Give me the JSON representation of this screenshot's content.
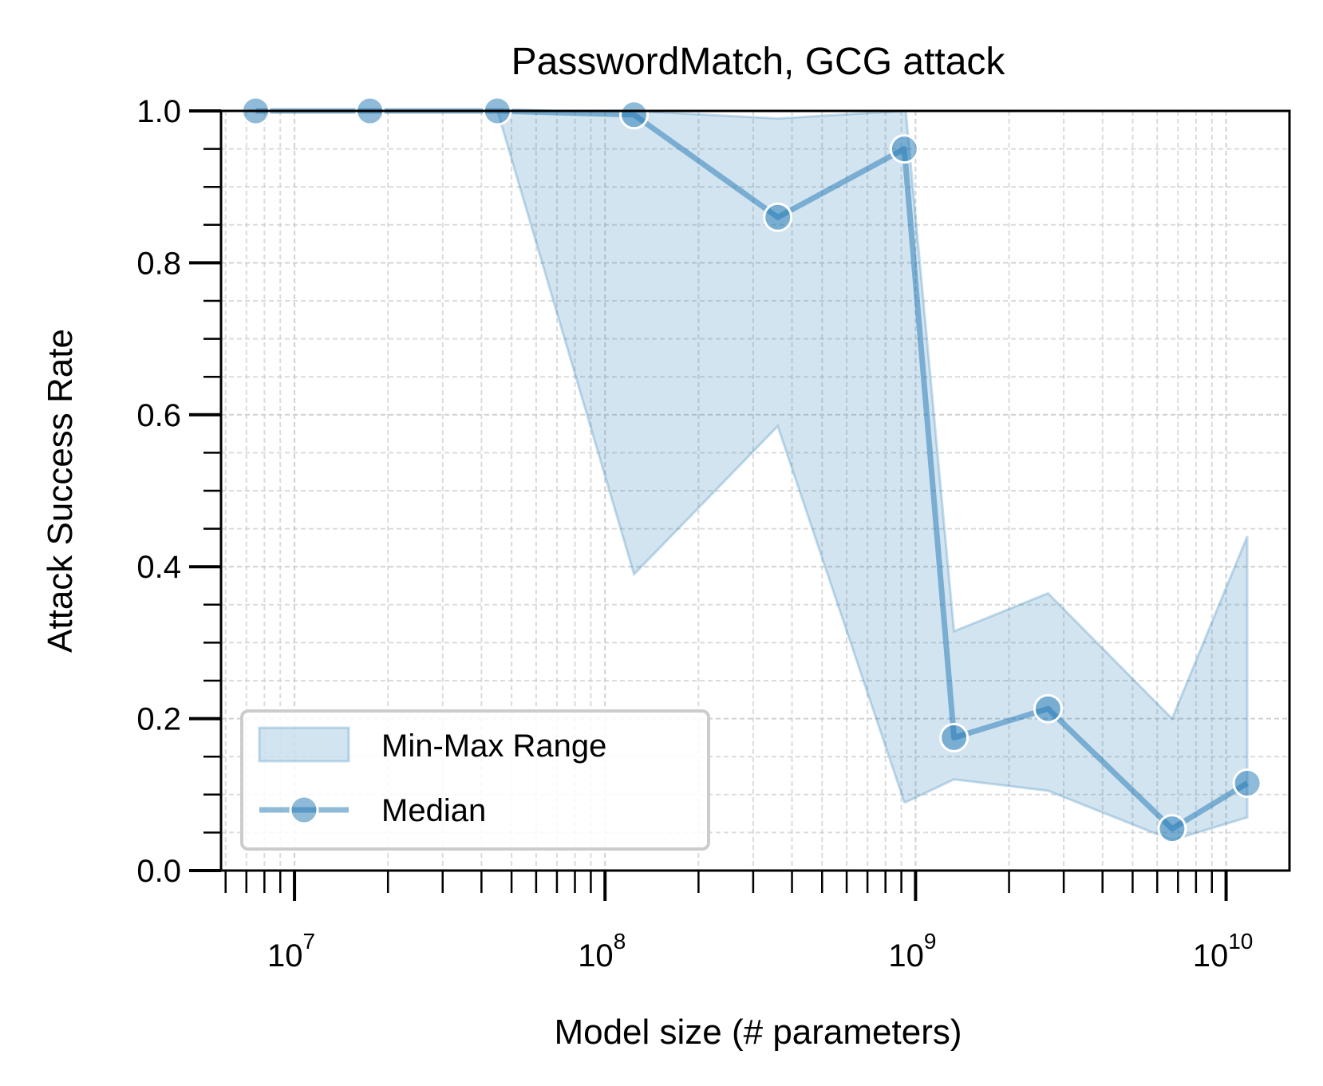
{
  "chart_data": {
    "type": "line",
    "title": "PasswordMatch, GCG attack",
    "xlabel": "Model size (# parameters)",
    "ylabel": "Attack Success Rate",
    "xscale": "log",
    "xlim": [
      5800000.0,
      16000000000.0
    ],
    "ylim": [
      0.0,
      1.0
    ],
    "x_ticks": [
      {
        "value": 10000000.0,
        "base": "10",
        "exp": "7"
      },
      {
        "value": 100000000.0,
        "base": "10",
        "exp": "8"
      },
      {
        "value": 1000000000.0,
        "base": "10",
        "exp": "9"
      },
      {
        "value": 10000000000.0,
        "base": "10",
        "exp": "10"
      }
    ],
    "y_ticks": [
      "0.0",
      "0.2",
      "0.4",
      "0.6",
      "0.8",
      "1.0"
    ],
    "grid": true,
    "legend_position": "lower-left",
    "legend": {
      "band_label": "Min-Max Range",
      "line_label": "Median"
    },
    "colors": {
      "series": "#1f77b4"
    },
    "range_band": {
      "x": [
        7500000.0,
        17500000.0,
        45000000.0,
        124000000.0,
        360000000.0,
        920000000.0,
        930000000.0,
        1330000000.0,
        2670000000.0,
        6700000000.0,
        11700000000.0
      ],
      "upper": [
        1.0,
        1.0,
        1.0,
        1.0,
        0.99,
        1.0,
        1.0,
        0.315,
        0.365,
        0.2,
        0.44
      ],
      "lower": [
        1.0,
        1.0,
        1.0,
        0.39,
        0.585,
        0.09,
        0.09,
        0.12,
        0.105,
        0.04,
        0.07
      ]
    },
    "series": [
      {
        "name": "Median",
        "x": [
          7500000.0,
          17500000.0,
          45000000.0,
          124000000.0,
          360000000.0,
          920000000.0,
          1330000000.0,
          2670000000.0,
          6700000000.0,
          11700000000.0
        ],
        "values": [
          1.0,
          1.0,
          1.0,
          0.995,
          0.86,
          0.95,
          0.175,
          0.213,
          0.055,
          0.115
        ]
      }
    ]
  }
}
